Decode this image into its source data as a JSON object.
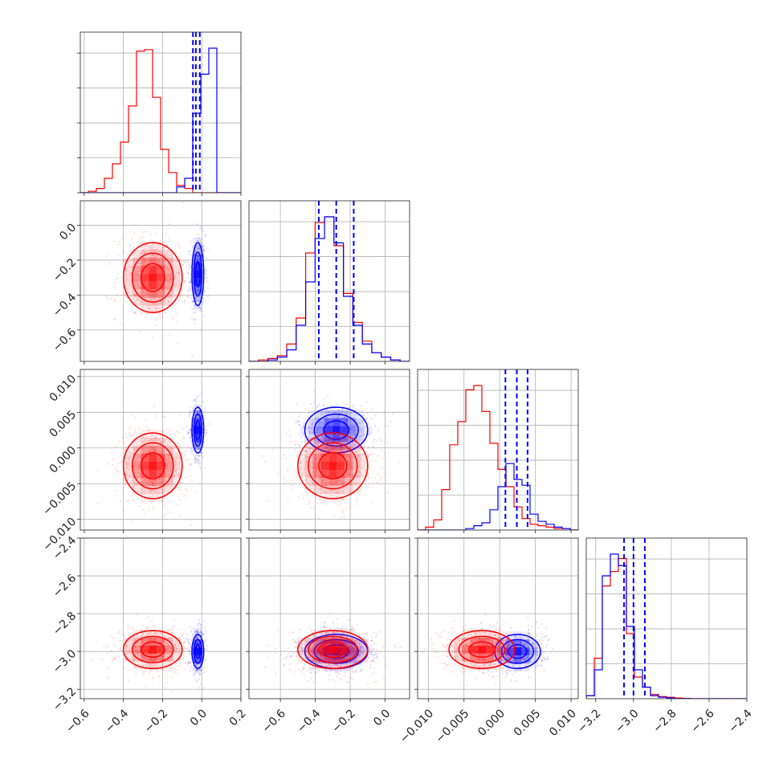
{
  "colors": {
    "series_a": "#0000ff",
    "series_b": "#ff0000",
    "grid": "#b0b0b0",
    "axis": "#222222"
  },
  "chart_data": {
    "type": "corner-plot",
    "grid": true,
    "parameters": [
      {
        "range": [
          -0.62,
          0.2
        ],
        "ticks": [
          -0.6,
          -0.4,
          -0.2,
          0.0,
          0.2
        ],
        "tick_labels": [
          "−0.6",
          "−0.4",
          "−0.2",
          "0.0",
          "0.2"
        ]
      },
      {
        "range": [
          -0.78,
          0.14
        ],
        "ticks": [
          -0.6,
          -0.4,
          -0.2,
          0.0
        ],
        "tick_labels": [
          "−0.6",
          "−0.4",
          "−0.2",
          "0.0"
        ]
      },
      {
        "range": [
          -0.0115,
          0.011
        ],
        "ticks": [
          -0.01,
          -0.005,
          0.0,
          0.005,
          0.01
        ],
        "tick_labels": [
          "−0.010",
          "−0.005",
          "0.000",
          "0.005",
          "0.010"
        ]
      },
      {
        "range": [
          -3.25,
          -2.4
        ],
        "ticks": [
          -3.2,
          -3.0,
          -2.8,
          -2.6,
          -2.4
        ],
        "tick_labels": [
          "−3.2",
          "−3.0",
          "−2.8",
          "−2.6",
          "−2.4"
        ]
      }
    ],
    "series": [
      {
        "color": "#0000ff",
        "means": [
          -0.02,
          -0.28,
          0.0025,
          -3.0
        ],
        "sds": [
          0.015,
          0.09,
          0.0016,
          0.045
        ],
        "quantiles": [
          [
            -0.045,
            -0.03,
            -0.01
          ],
          [
            -0.38,
            -0.28,
            -0.18
          ],
          [
            0.0008,
            0.0024,
            0.0039
          ],
          [
            -3.05,
            -3.0,
            -2.94
          ]
        ],
        "histograms": [
          {
            "edges": [
              -0.62,
              0.2
            ],
            "counts": [
              0,
              0,
              0,
              0,
              0,
              0,
              0,
              0,
              0,
              0,
              0,
              0,
              0.04,
              0.1,
              0.55,
              0.82,
              1.0,
              0.0,
              0.0,
              0.0
            ]
          },
          {
            "counts": [
              0.0,
              0.0,
              0.01,
              0.03,
              0.08,
              0.25,
              0.55,
              0.85,
              1.0,
              0.82,
              0.45,
              0.25,
              0.12,
              0.06,
              0.03,
              0.01,
              0.0
            ]
          },
          {
            "counts": [
              0,
              0,
              0,
              0,
              0,
              0,
              0.01,
              0.03,
              0.05,
              0.14,
              0.3,
              0.46,
              0.35,
              0.31,
              0.11,
              0.06,
              0.04,
              0.02,
              0.01,
              0
            ]
          },
          {
            "counts": [
              0.02,
              0.2,
              0.85,
              1.0,
              0.92,
              0.5,
              0.2,
              0.08,
              0.02,
              0.01,
              0.005,
              0,
              0,
              0,
              0,
              0,
              0,
              0,
              0,
              0
            ]
          }
        ]
      },
      {
        "color": "#ff0000",
        "means": [
          -0.25,
          -0.3,
          -0.0025,
          -2.99
        ],
        "sds": [
          0.075,
          0.1,
          0.0023,
          0.05
        ],
        "histograms": [
          {
            "counts": [
              0.0,
              0.01,
              0.03,
              0.1,
              0.2,
              0.35,
              0.6,
              0.98,
              0.99,
              0.66,
              0.3,
              0.14,
              0.05,
              0.03,
              0.0,
              0.0,
              0.0,
              0.0,
              0.0,
              0.0
            ]
          },
          {
            "counts": [
              0.0,
              0.01,
              0.02,
              0.04,
              0.12,
              0.3,
              0.75,
              0.96,
              1.0,
              0.8,
              0.47,
              0.27,
              0.14,
              0.06,
              0.03,
              0.01,
              0.0
            ]
          },
          {
            "counts": [
              0.0,
              0.02,
              0.07,
              0.28,
              0.59,
              0.75,
              0.97,
              1.0,
              0.82,
              0.6,
              0.42,
              0.3,
              0.16,
              0.08,
              0.04,
              0.03,
              0.02,
              0.01,
              0.01,
              0.0
            ]
          },
          {
            "counts": [
              0.02,
              0.28,
              0.78,
              0.88,
              0.97,
              0.45,
              0.15,
              0.08,
              0.03,
              0.015,
              0.01,
              0.005,
              0.002,
              0,
              0,
              0,
              0,
              0,
              0,
              0
            ]
          }
        ]
      }
    ]
  }
}
